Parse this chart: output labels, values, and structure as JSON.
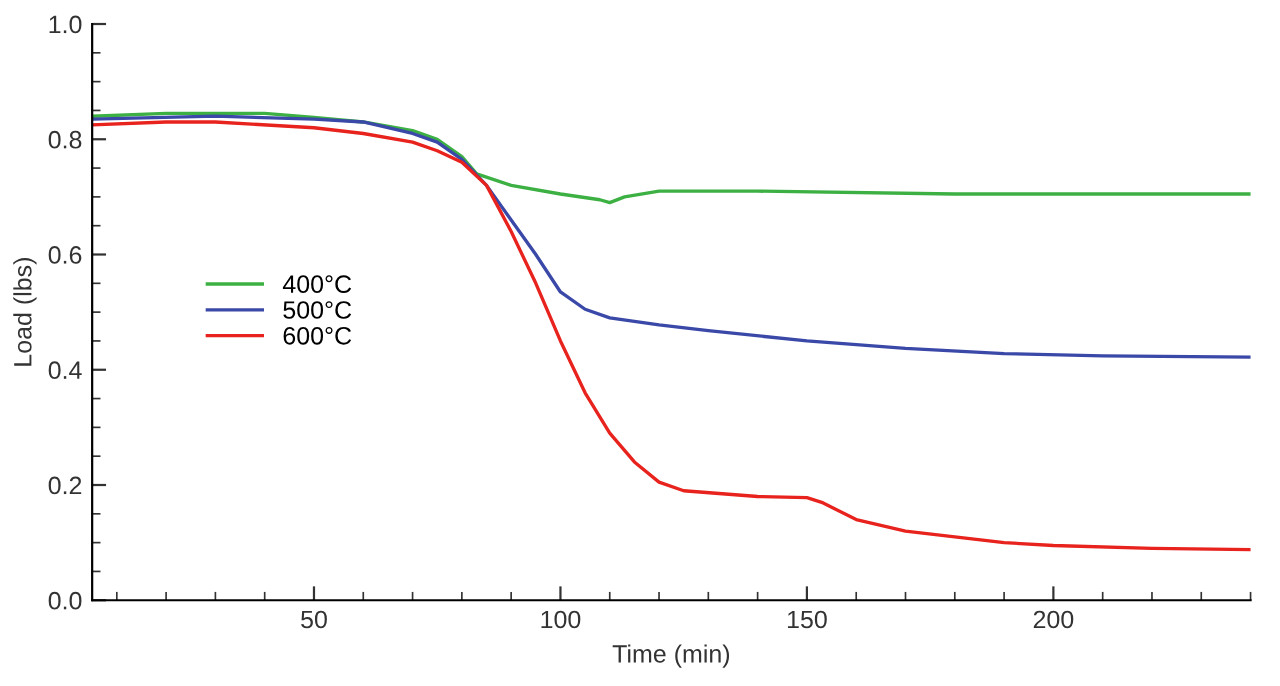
{
  "chart_data": {
    "type": "line",
    "xlabel": "Time (min)",
    "ylabel": "Load (lbs)",
    "xlim": [
      5,
      240
    ],
    "ylim": [
      0,
      1
    ],
    "xticks": [
      50,
      100,
      150,
      200
    ],
    "yticks": [
      {
        "value": 0,
        "label": "0.0"
      },
      0.2,
      0.4,
      0.6,
      0.8,
      {
        "value": 1,
        "label": "1.0"
      }
    ],
    "grid": false,
    "legend": "left",
    "marker": "none",
    "line_style": "solid",
    "series": [
      {
        "name": "400°C",
        "color": "#3cb043",
        "x": [
          5,
          20,
          40,
          50,
          60,
          70,
          75,
          80,
          83,
          90,
          100,
          108,
          110,
          113,
          120,
          140,
          180,
          240
        ],
        "values": [
          0.84,
          0.845,
          0.845,
          0.838,
          0.83,
          0.815,
          0.8,
          0.77,
          0.74,
          0.72,
          0.705,
          0.695,
          0.69,
          0.7,
          0.71,
          0.71,
          0.705,
          0.705
        ]
      },
      {
        "name": "500°C",
        "color": "#3a48a8",
        "x": [
          5,
          30,
          50,
          60,
          70,
          75,
          80,
          85,
          90,
          95,
          100,
          105,
          110,
          120,
          130,
          150,
          170,
          190,
          210,
          240
        ],
        "values": [
          0.835,
          0.84,
          0.835,
          0.83,
          0.81,
          0.795,
          0.765,
          0.72,
          0.66,
          0.6,
          0.535,
          0.505,
          0.49,
          0.478,
          0.468,
          0.45,
          0.437,
          0.428,
          0.424,
          0.422
        ]
      },
      {
        "name": "600°C",
        "color": "#e8221c",
        "x": [
          5,
          20,
          30,
          50,
          60,
          70,
          75,
          80,
          85,
          90,
          95,
          100,
          105,
          110,
          115,
          120,
          125,
          140,
          150,
          153,
          160,
          170,
          180,
          190,
          200,
          220,
          240
        ],
        "values": [
          0.825,
          0.83,
          0.83,
          0.82,
          0.81,
          0.795,
          0.78,
          0.76,
          0.72,
          0.64,
          0.55,
          0.45,
          0.36,
          0.29,
          0.24,
          0.205,
          0.19,
          0.18,
          0.178,
          0.17,
          0.14,
          0.12,
          0.11,
          0.1,
          0.095,
          0.09,
          0.088
        ]
      }
    ]
  }
}
